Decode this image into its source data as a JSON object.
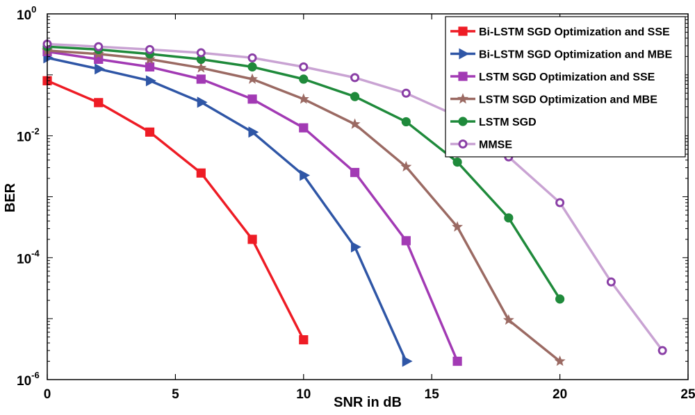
{
  "chart_data": {
    "type": "line",
    "title": "",
    "xlabel": "SNR in dB",
    "ylabel": "BER",
    "xlim": [
      0,
      25
    ],
    "ylim": [
      1e-06,
      1
    ],
    "yscale": "log",
    "grid": false,
    "legend_position": "top-right",
    "x_ticks": [
      "0",
      "5",
      "10",
      "15",
      "20",
      "25"
    ],
    "y_ticks": [
      {
        "base": "10",
        "exp": "0",
        "value": 1
      },
      {
        "base": "10",
        "exp": "-2",
        "value": 0.01
      },
      {
        "base": "10",
        "exp": "-4",
        "value": 0.0001
      },
      {
        "base": "10",
        "exp": "-6",
        "value": 1e-06
      }
    ],
    "series": [
      {
        "name": "Bi-LSTM SGD Optimization and SSE",
        "color": "#ee1c25",
        "marker": "square",
        "x": [
          0,
          2,
          4,
          6,
          8,
          10
        ],
        "y": [
          0.08,
          0.035,
          0.0115,
          0.00245,
          0.0002,
          4.5e-06
        ]
      },
      {
        "name": "Bi-LSTM SGD Optimization and MBE",
        "color": "#2f56a6",
        "marker": "triangle-right",
        "x": [
          0,
          2,
          4,
          6,
          8,
          10,
          12,
          14
        ],
        "y": [
          0.19,
          0.125,
          0.08,
          0.0355,
          0.0115,
          0.00225,
          0.00015,
          2e-06
        ]
      },
      {
        "name": "LSTM SGD Optimization and SSE",
        "color": "#a23ab4",
        "marker": "square",
        "x": [
          0,
          2,
          4,
          6,
          8,
          10,
          12,
          14,
          16
        ],
        "y": [
          0.24,
          0.18,
          0.135,
          0.085,
          0.04,
          0.0135,
          0.0025,
          0.00019,
          2e-06
        ]
      },
      {
        "name": "LSTM SGD Optimization and MBE",
        "color": "#9b6a63",
        "marker": "star",
        "x": [
          0,
          2,
          4,
          6,
          8,
          10,
          12,
          14,
          16,
          18,
          20
        ],
        "y": [
          0.25,
          0.22,
          0.18,
          0.13,
          0.085,
          0.04,
          0.0155,
          0.0031,
          0.00032,
          9.5e-06,
          2e-06
        ]
      },
      {
        "name": "LSTM SGD",
        "color": "#1f8a3b",
        "marker": "circle",
        "x": [
          0,
          2,
          4,
          6,
          8,
          10,
          12,
          14,
          16,
          18,
          20
        ],
        "y": [
          0.29,
          0.26,
          0.22,
          0.18,
          0.135,
          0.085,
          0.044,
          0.017,
          0.0037,
          0.00045,
          2.1e-05
        ]
      },
      {
        "name": "MMSE",
        "color": "#c9a3d3",
        "marker": "circle-open",
        "markerColor": "#8a3fa6",
        "x": [
          0,
          2,
          4,
          6,
          8,
          10,
          12,
          14,
          16,
          18,
          20,
          22,
          24
        ],
        "y": [
          0.32,
          0.29,
          0.26,
          0.23,
          0.19,
          0.135,
          0.09,
          0.05,
          0.021,
          0.0045,
          0.0008,
          4e-05,
          3e-06
        ]
      }
    ]
  }
}
